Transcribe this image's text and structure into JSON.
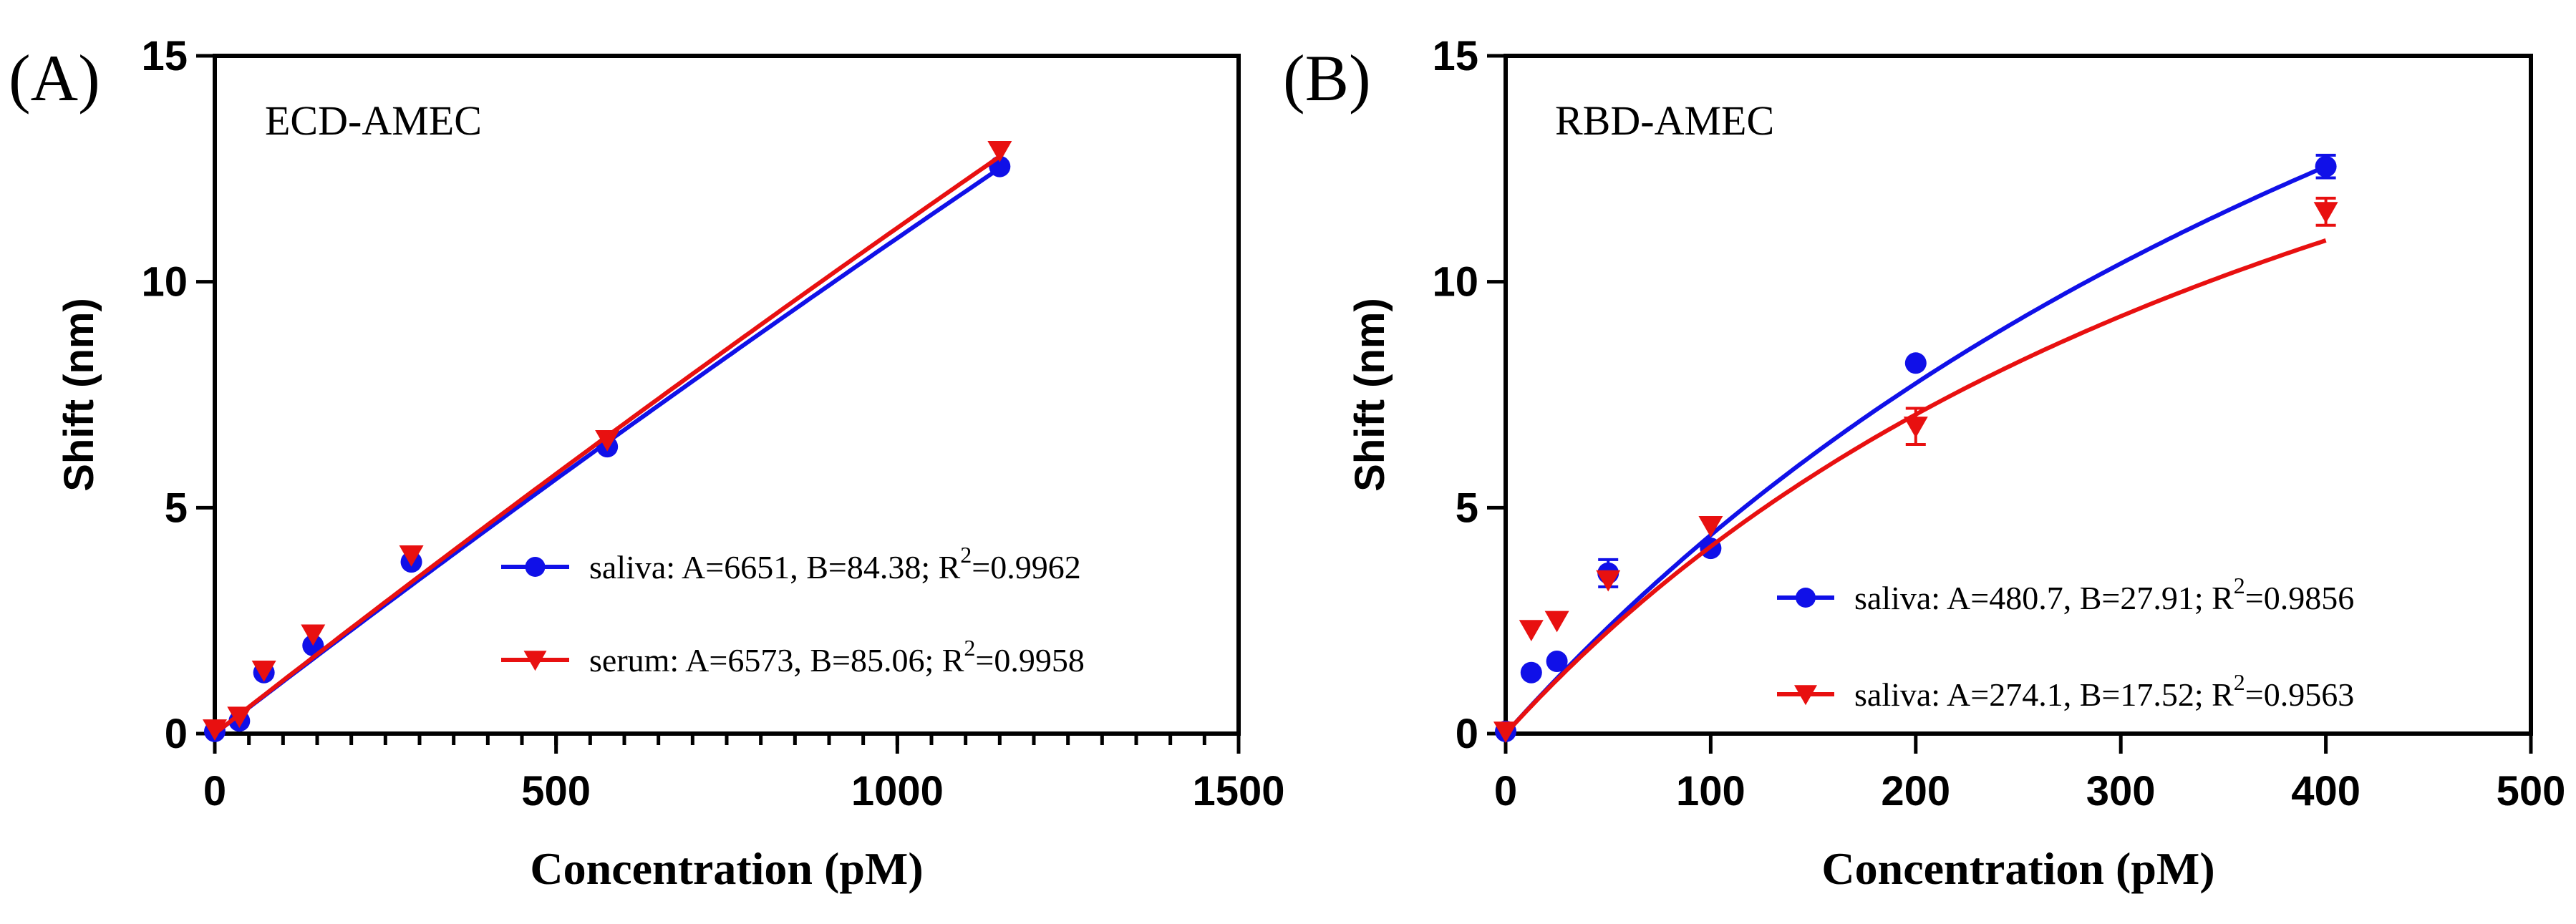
{
  "colors": {
    "saliva": "#1010e8",
    "serum": "#e81010",
    "axis": "#000000"
  },
  "chart_data": [
    {
      "type": "scatter",
      "panel_label": "(A)",
      "inset_title": "ECD-AMEC",
      "xlabel": "Concentration (pM)",
      "ylabel": "Shift (nm)",
      "xlim": [
        0,
        1500
      ],
      "ylim": [
        0,
        15
      ],
      "xticks": [
        "0",
        "500",
        "1000",
        "1500"
      ],
      "yticks": [
        "0",
        "5",
        "10",
        "15"
      ],
      "x_minor_step": 50,
      "y_minor_step": 0,
      "legend_position": "right",
      "series": [
        {
          "name": "saliva",
          "legend_text": "saliva: A=6651, B=84.38; R",
          "legend_r2": "2",
          "legend_tail": "=0.9962",
          "marker": "circle",
          "color_key": "saliva",
          "A": 6651,
          "B": 84.38,
          "points": [
            {
              "x": 0,
              "y": 0.05,
              "err": 0
            },
            {
              "x": 36,
              "y": 0.28,
              "err": 0
            },
            {
              "x": 72,
              "y": 1.35,
              "err": 0
            },
            {
              "x": 144,
              "y": 1.95,
              "err": 0
            },
            {
              "x": 288,
              "y": 3.8,
              "err": 0
            },
            {
              "x": 575,
              "y": 6.35,
              "err": 0
            },
            {
              "x": 1150,
              "y": 12.55,
              "err": 0
            }
          ]
        },
        {
          "name": "serum",
          "legend_text": "serum: A=6573, B=85.06; R",
          "legend_r2": "2",
          "legend_tail": "=0.9958",
          "marker": "triangle-down",
          "color_key": "serum",
          "A": 6573,
          "B": 85.06,
          "points": [
            {
              "x": 0,
              "y": 0.1,
              "err": 0
            },
            {
              "x": 36,
              "y": 0.38,
              "err": 0
            },
            {
              "x": 72,
              "y": 1.4,
              "err": 0
            },
            {
              "x": 144,
              "y": 2.2,
              "err": 0
            },
            {
              "x": 288,
              "y": 3.95,
              "err": 0
            },
            {
              "x": 575,
              "y": 6.5,
              "err": 0
            },
            {
              "x": 1150,
              "y": 12.9,
              "err": 0
            }
          ]
        }
      ]
    },
    {
      "type": "scatter",
      "panel_label": "(B)",
      "inset_title": "RBD-AMEC",
      "xlabel": "Concentration (pM)",
      "ylabel": "Shift (nm)",
      "xlim": [
        0,
        500
      ],
      "ylim": [
        0,
        15
      ],
      "xticks": [
        "0",
        "100",
        "200",
        "300",
        "400",
        "500"
      ],
      "yticks": [
        "0",
        "5",
        "10",
        "15"
      ],
      "x_minor_step": 0,
      "y_minor_step": 0,
      "legend_position": "bottom-right",
      "series": [
        {
          "name": "saliva",
          "legend_text": "saliva: A=480.7, B=27.91; R",
          "legend_r2": "2",
          "legend_tail": "=0.9856",
          "marker": "circle",
          "color_key": "saliva",
          "A": 480.7,
          "B": 27.91,
          "points": [
            {
              "x": 0,
              "y": 0.05,
              "err": 0
            },
            {
              "x": 12.5,
              "y": 1.35,
              "err": 0
            },
            {
              "x": 25,
              "y": 1.6,
              "err": 0
            },
            {
              "x": 50,
              "y": 3.55,
              "err": 0.3
            },
            {
              "x": 100,
              "y": 4.1,
              "err": 0
            },
            {
              "x": 200,
              "y": 8.2,
              "err": 0
            },
            {
              "x": 400,
              "y": 12.55,
              "err": 0.25
            }
          ]
        },
        {
          "name": "saliva",
          "legend_text": "saliva: A=274.1, B=17.52; R",
          "legend_r2": "2",
          "legend_tail": "=0.9563",
          "marker": "triangle-down",
          "color_key": "serum",
          "A": 274.1,
          "B": 17.52,
          "points": [
            {
              "x": 0,
              "y": 0.05,
              "err": 0
            },
            {
              "x": 12.5,
              "y": 2.3,
              "err": 0
            },
            {
              "x": 25,
              "y": 2.5,
              "err": 0
            },
            {
              "x": 50,
              "y": 3.4,
              "err": 0
            },
            {
              "x": 100,
              "y": 4.6,
              "err": 0
            },
            {
              "x": 200,
              "y": 6.8,
              "err": 0.4
            },
            {
              "x": 400,
              "y": 11.55,
              "err": 0.3
            }
          ]
        }
      ]
    }
  ]
}
